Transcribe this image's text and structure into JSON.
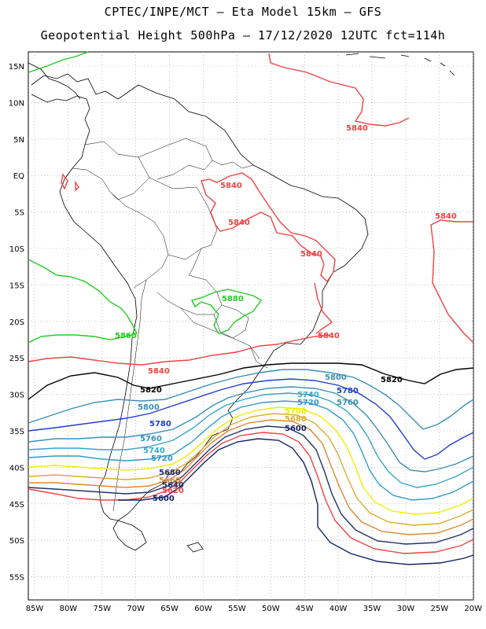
{
  "header": {
    "line1": "CPTEC/INPE/MCT –  Eta Model 15km – GFS",
    "line2": "Geopotential Height 500hPa – 17/12/2020 12UTC fct=114h"
  },
  "axes": {
    "lat_labels": [
      "15N",
      "10N",
      "5N",
      "EQ",
      "5S",
      "10S",
      "15S",
      "20S",
      "25S",
      "30S",
      "35S",
      "40S",
      "45S",
      "50S",
      "55S"
    ],
    "lon_labels": [
      "85W",
      "80W",
      "75W",
      "70W",
      "65W",
      "60W",
      "55W",
      "50W",
      "45W",
      "40W",
      "35W",
      "30W",
      "25W",
      "20W"
    ]
  },
  "contours": {
    "colors": {
      "5880": "#22cc22",
      "5860": "#22cc22",
      "5840": "#ee4444",
      "5820": "#000000",
      "5800": "#3a8fb5",
      "5780": "#1f3fd0",
      "5760": "#3a8fb5",
      "5740": "#39a6c8",
      "5720": "#3399cc",
      "5700": "#eeee00",
      "5680": "#ddaa33",
      "5660": "#dd8833",
      "5640": "#223366",
      "5620": "#ee4444",
      "5600": "#112266"
    },
    "labels": [
      {
        "id": "l5840a",
        "text": "5840"
      },
      {
        "id": "l5840b",
        "text": "5840"
      },
      {
        "id": "l5840c",
        "text": "5840"
      },
      {
        "id": "l5840d",
        "text": "5840"
      },
      {
        "id": "l5840e",
        "text": "5840"
      },
      {
        "id": "l5840f",
        "text": "5840"
      },
      {
        "id": "l5840g",
        "text": "5840"
      },
      {
        "id": "l5880",
        "text": "5880"
      },
      {
        "id": "l5860",
        "text": "5860"
      },
      {
        "id": "l5820a",
        "text": "5820"
      },
      {
        "id": "l5820b",
        "text": "5820"
      },
      {
        "id": "l5800a",
        "text": "5800"
      },
      {
        "id": "l5800b",
        "text": "5800"
      },
      {
        "id": "l5780a",
        "text": "5780"
      },
      {
        "id": "l5780b",
        "text": "5780"
      },
      {
        "id": "l5760a",
        "text": "5760"
      },
      {
        "id": "l5760b",
        "text": "5760"
      },
      {
        "id": "l5740a",
        "text": "5740"
      },
      {
        "id": "l5740b",
        "text": "5740"
      },
      {
        "id": "l5720a",
        "text": "5720"
      },
      {
        "id": "l5720b",
        "text": "5720"
      },
      {
        "id": "l5700a",
        "text": "5700"
      },
      {
        "id": "l5680a",
        "text": "5680"
      },
      {
        "id": "l5680b",
        "text": "5680"
      },
      {
        "id": "l5660a",
        "text": "5660"
      },
      {
        "id": "l5640a",
        "text": "5640"
      },
      {
        "id": "l5620a",
        "text": "5620"
      },
      {
        "id": "l5600a",
        "text": "5600"
      },
      {
        "id": "l5600b",
        "text": "5600"
      }
    ]
  }
}
